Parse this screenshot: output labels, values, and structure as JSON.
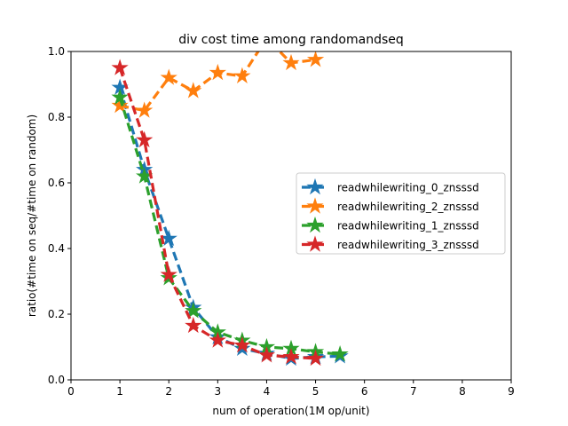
{
  "chart_data": {
    "type": "line",
    "title": "div cost time among randomandseq",
    "xlabel": "num of operation(1M op/unit)",
    "ylabel": "ratio(#time on seq/#time on random)",
    "xlim": [
      0,
      9
    ],
    "ylim": [
      0,
      1.0
    ],
    "xticks": [
      "0",
      "1",
      "2",
      "3",
      "4",
      "5",
      "6",
      "7",
      "8",
      "9"
    ],
    "yticks": [
      "0.0",
      "0.2",
      "0.4",
      "0.6",
      "0.8",
      "1.0"
    ],
    "grid": false,
    "legend_position": "center-right",
    "series": [
      {
        "name": "readwhilewriting_0_znsssd",
        "color": "#1f77b4",
        "x": [
          1.0,
          1.5,
          2.0,
          2.5,
          3.0,
          3.5,
          4.0,
          4.5,
          5.0,
          5.5
        ],
        "y": [
          0.89,
          0.64,
          0.43,
          0.22,
          0.13,
          0.095,
          0.08,
          0.065,
          0.07,
          0.072
        ]
      },
      {
        "name": "readwhilewriting_2_znsssd",
        "color": "#ff7f0e",
        "x": [
          1.0,
          1.5,
          2.0,
          2.5,
          3.0,
          3.5,
          4.0,
          4.5,
          5.0
        ],
        "y": [
          0.835,
          0.82,
          0.92,
          0.88,
          0.935,
          0.925,
          1.04,
          0.965,
          0.975
        ]
      },
      {
        "name": "readwhilewriting_1_znsssd",
        "color": "#2ca02c",
        "x": [
          1.0,
          1.5,
          2.0,
          2.5,
          3.0,
          3.5,
          4.0,
          4.5,
          5.0,
          5.5
        ],
        "y": [
          0.86,
          0.62,
          0.31,
          0.21,
          0.145,
          0.12,
          0.1,
          0.095,
          0.085,
          0.078
        ]
      },
      {
        "name": "readwhilewriting_3_znsssd",
        "color": "#d62728",
        "x": [
          1.0,
          1.5,
          2.0,
          2.5,
          3.0,
          3.5,
          4.0,
          4.5,
          5.0
        ],
        "y": [
          0.95,
          0.73,
          0.32,
          0.165,
          0.12,
          0.105,
          0.075,
          0.07,
          0.065
        ]
      }
    ]
  }
}
